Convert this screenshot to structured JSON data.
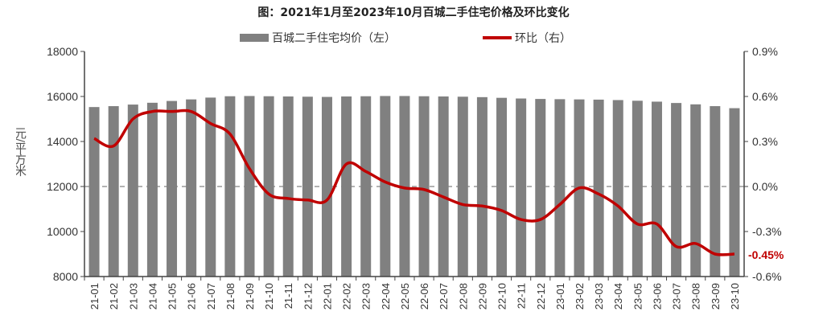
{
  "chart_data": {
    "type": "bar+line",
    "title": "图：2021年1月至2023年10月百城二手住宅价格及环比变化",
    "ylabel_left": "元/平方米",
    "left_axis": {
      "range": [
        8000,
        18000
      ],
      "ticks": [
        "8000",
        "10000",
        "12000",
        "14000",
        "16000",
        "18000"
      ]
    },
    "right_axis": {
      "range": [
        -0.6,
        0.9
      ],
      "ticks": [
        "-0.6%",
        "-0.3%",
        "0.0%",
        "0.3%",
        "0.6%",
        "0.9%"
      ]
    },
    "categories": [
      "21-01",
      "21-02",
      "21-03",
      "21-04",
      "21-05",
      "21-06",
      "21-07",
      "21-08",
      "21-09",
      "21-10",
      "21-11",
      "21-12",
      "22-01",
      "22-02",
      "22-03",
      "22-04",
      "22-05",
      "22-06",
      "22-07",
      "22-08",
      "22-09",
      "22-10",
      "22-11",
      "22-12",
      "23-01",
      "23-02",
      "23-03",
      "23-04",
      "23-05",
      "23-06",
      "23-07",
      "23-08",
      "23-09",
      "23-10"
    ],
    "series": [
      {
        "name": "百城二手住宅均价（左）",
        "type": "bar",
        "axis": "left",
        "color": "#808080",
        "values": [
          15530,
          15570,
          15640,
          15720,
          15800,
          15870,
          15950,
          16010,
          16020,
          16010,
          16000,
          15990,
          15980,
          16000,
          16010,
          16020,
          16020,
          16010,
          16000,
          15990,
          15970,
          15940,
          15910,
          15890,
          15880,
          15870,
          15860,
          15840,
          15810,
          15770,
          15710,
          15650,
          15570,
          15480
        ]
      },
      {
        "name": "环比（右）",
        "type": "line",
        "axis": "right",
        "color": "#c00000",
        "values": [
          0.32,
          0.27,
          0.45,
          0.5,
          0.5,
          0.5,
          0.42,
          0.35,
          0.12,
          -0.05,
          -0.08,
          -0.09,
          -0.09,
          0.15,
          0.1,
          0.03,
          -0.01,
          -0.02,
          -0.07,
          -0.12,
          -0.13,
          -0.16,
          -0.22,
          -0.22,
          -0.12,
          -0.01,
          -0.05,
          -0.13,
          -0.25,
          -0.25,
          -0.4,
          -0.38,
          -0.45,
          -0.45
        ]
      }
    ],
    "annotation": "-0.45%",
    "reference_line": 0.0,
    "legend_placement": "top"
  }
}
